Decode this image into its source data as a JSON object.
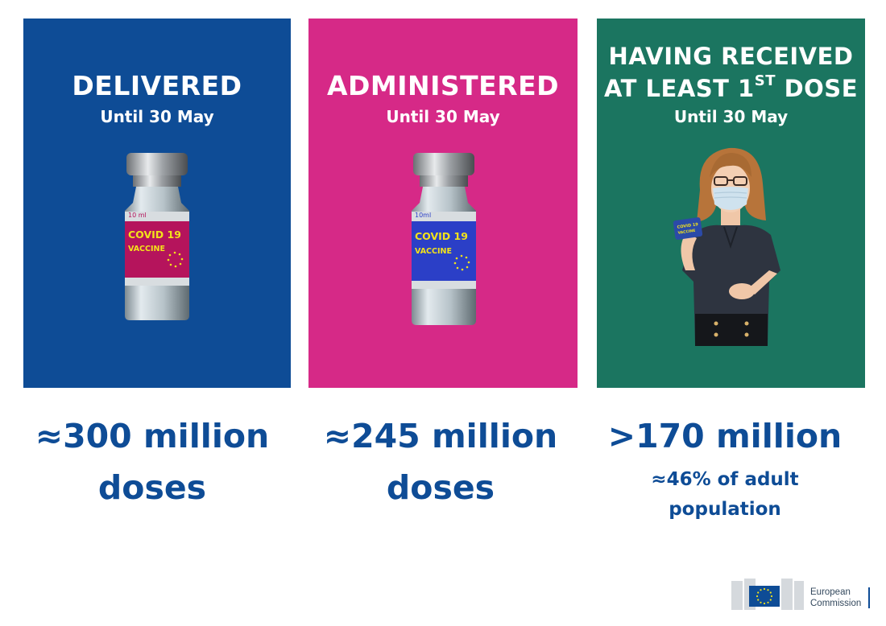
{
  "panels": [
    {
      "title": "DELIVERED",
      "subtitle": "Until 30 May",
      "color": "#0e4c96",
      "label": {
        "volume": "10 ml",
        "line1": "COVID 19",
        "line2": "VACCINE",
        "color": "#b5145c"
      }
    },
    {
      "title": "ADMINISTERED",
      "subtitle": "Until 30 May",
      "color": "#d62987",
      "label": {
        "volume": "10ml",
        "line1": "COVID 19",
        "line2": "VACCINE",
        "color": "#2b3fc7"
      }
    },
    {
      "title_line1": "HAVING RECEIVED",
      "title_line2": "AT LEAST 1",
      "title_sup": "ST",
      "title_tail": " DOSE",
      "subtitle": "Until 30 May",
      "color": "#1b7560",
      "card": {
        "line1": "COVID 19",
        "line2": "VACCINE"
      }
    }
  ],
  "stats": [
    {
      "line1": "≈300 million",
      "line2": "doses"
    },
    {
      "line1": "≈245 million",
      "line2": "doses"
    },
    {
      "line1": ">170 million",
      "note1": "≈46% of adult",
      "note2": "population"
    }
  ],
  "logo": {
    "line1": "European",
    "line2": "Commission"
  },
  "colors": {
    "stat_text": "#0e4c96",
    "label_text": "#f2e21b"
  }
}
